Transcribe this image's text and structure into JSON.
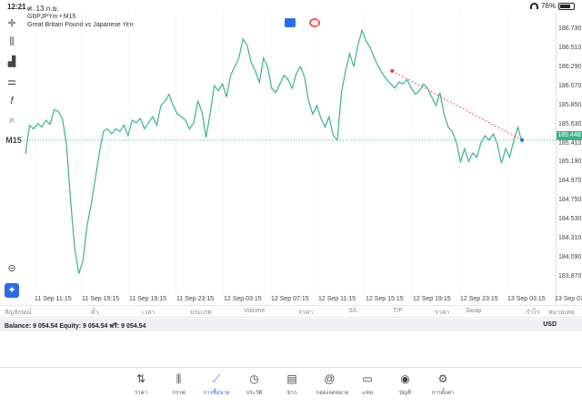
{
  "status": {
    "time": "12:21",
    "date": "ศ. 13 ก.ย.",
    "battery": "76%",
    "battery_level": 0.76
  },
  "symbol": {
    "title": "GBPJPYm • M15",
    "description": "Great Britain Pound vs Japanese Yen"
  },
  "left_toolbar": {
    "timeframe": "M15"
  },
  "price_axis": [
    "186.730",
    "186.510",
    "186.290",
    "186.070",
    "185.850",
    "185.630",
    "185.410",
    "185.190",
    "184.970",
    "184.750",
    "184.530",
    "184.310",
    "184.090",
    "183.870"
  ],
  "current_price": "185.448",
  "time_axis": [
    "11 Sep 11:15",
    "11 Sep 15:15",
    "11 Sep 19:15",
    "11 Sep 23:15",
    "12 Sep 03:15",
    "12 Sep 07:15",
    "12 Sep 11:15",
    "12 Sep 15:15",
    "12 Sep 19:15",
    "12 Sep 23:15",
    "13 Sep 03:15",
    "13 Sep 07:1"
  ],
  "chart_data": {
    "type": "line",
    "series": [
      {
        "values": [
          185.29,
          185.62,
          185.58,
          185.64,
          185.6,
          185.68,
          185.63,
          185.8,
          185.78,
          185.7,
          185.4,
          184.75,
          184.2,
          183.9,
          184.05,
          184.45,
          184.7,
          185.0,
          185.3,
          185.55,
          185.58,
          185.52,
          185.58,
          185.55,
          185.62,
          185.5,
          185.68,
          185.65,
          185.7,
          185.58,
          185.65,
          185.72,
          185.62,
          185.85,
          185.9,
          185.98,
          185.85,
          185.75,
          185.72,
          185.68,
          185.58,
          185.65,
          185.9,
          185.78,
          185.48,
          185.75,
          186.08,
          186.02,
          186.1,
          185.95,
          186.2,
          186.3,
          186.4,
          186.62,
          186.55,
          186.35,
          186.25,
          186.12,
          186.4,
          186.3,
          186.05,
          186.0,
          186.1,
          186.2,
          186.15,
          186.05,
          186.22,
          186.3,
          186.18,
          185.9,
          185.75,
          185.85,
          185.7,
          185.6,
          185.72,
          185.5,
          185.45,
          186.0,
          186.25,
          186.45,
          186.3,
          186.55,
          186.72,
          186.6,
          186.52,
          186.4,
          186.3,
          186.22,
          186.15,
          186.1,
          186.05,
          186.12,
          186.1,
          186.15,
          186.05,
          185.98,
          186.02,
          186.1,
          186.05,
          185.95,
          185.85,
          186.0,
          185.75,
          185.6,
          185.55,
          185.42,
          185.2,
          185.35,
          185.2,
          185.3,
          185.25,
          185.42,
          185.5,
          185.45,
          185.52,
          185.4,
          185.18,
          185.35,
          185.25,
          185.45,
          185.6,
          185.42
        ]
      }
    ],
    "ylim": [
      183.76,
      186.84
    ],
    "trendline": {
      "from_price": 186.25,
      "to_price": 185.45
    },
    "bid_line": 185.448
  },
  "table_headers": [
    "สัญลักษณ์",
    "ตั๋ว",
    "เวลา",
    "ประเภท",
    "Volume",
    "ราคา",
    "S/L",
    "T/P",
    "ราคา",
    "Swap",
    "กำไร",
    "หมายเหตุ"
  ],
  "balance": {
    "text": "Balance: 9 054.54  Equity: 9 054.54  ฟรี: 9 054.54",
    "currency": "USD"
  },
  "nav": [
    {
      "label": "ราคา",
      "icon": "quotes-icon",
      "active": false
    },
    {
      "label": "กราฟ",
      "icon": "chart-candles-icon",
      "active": false
    },
    {
      "label": "การซื้อขาย",
      "icon": "trade-icon",
      "active": true
    },
    {
      "label": "ประวัติ",
      "icon": "history-icon",
      "active": false
    },
    {
      "label": "ข่าว",
      "icon": "news-icon",
      "active": false
    },
    {
      "label": "กล่องจดหมาย",
      "icon": "mailbox-icon",
      "active": false
    },
    {
      "label": "แชท",
      "icon": "chat-icon",
      "active": false
    },
    {
      "label": "บัญชี",
      "icon": "account-icon",
      "active": false
    },
    {
      "label": "การตั้งค่า",
      "icon": "settings-icon",
      "active": false
    }
  ],
  "colors": {
    "line": "#3bb38a",
    "accent": "#2d6be4",
    "trend": "#e53935"
  }
}
